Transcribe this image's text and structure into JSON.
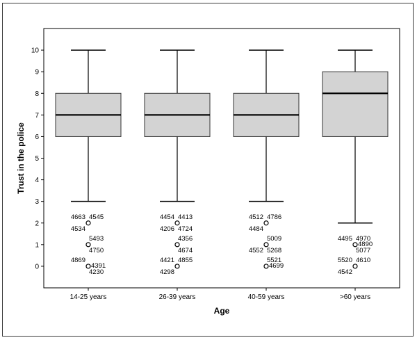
{
  "chart_data": {
    "type": "boxplot",
    "xlabel": "Age",
    "ylabel": "Trust in the police",
    "ylim": [
      -1,
      11
    ],
    "yticks": [
      0,
      1,
      2,
      3,
      4,
      5,
      6,
      7,
      8,
      9,
      10
    ],
    "categories": [
      "14-25 years",
      "26-39 years",
      "40-59 years",
      ">60 years"
    ],
    "box_color": "#d3d3d3",
    "boxes": [
      {
        "category": "14-25 years",
        "whisker_low": 3,
        "q1": 6,
        "median": 7,
        "q3": 8,
        "whisker_high": 10,
        "outliers": [
          {
            "value": 2,
            "labels": [
              {
                "text": "4663",
                "pos": "ul"
              },
              {
                "text": "4545",
                "pos": "ur"
              },
              {
                "text": "4534",
                "pos": "dl"
              }
            ]
          },
          {
            "value": 1,
            "labels": [
              {
                "text": "5493",
                "pos": "ur"
              },
              {
                "text": "4750",
                "pos": "dr"
              }
            ]
          },
          {
            "value": 0,
            "labels": [
              {
                "text": "4869",
                "pos": "ul"
              },
              {
                "text": "4391",
                "pos": "r"
              },
              {
                "text": "4230",
                "pos": "dr"
              }
            ]
          }
        ]
      },
      {
        "category": "26-39 years",
        "whisker_low": 3,
        "q1": 6,
        "median": 7,
        "q3": 8,
        "whisker_high": 10,
        "outliers": [
          {
            "value": 2,
            "labels": [
              {
                "text": "4454",
                "pos": "ul"
              },
              {
                "text": "4413",
                "pos": "ur"
              },
              {
                "text": "4206",
                "pos": "dl"
              },
              {
                "text": "4724",
                "pos": "dr"
              }
            ]
          },
          {
            "value": 1,
            "labels": [
              {
                "text": "4356",
                "pos": "ur"
              },
              {
                "text": "4674",
                "pos": "dr"
              }
            ]
          },
          {
            "value": 0,
            "labels": [
              {
                "text": "4421",
                "pos": "ul"
              },
              {
                "text": "4855",
                "pos": "ur"
              },
              {
                "text": "4298",
                "pos": "dl"
              }
            ]
          }
        ]
      },
      {
        "category": "40-59 years",
        "whisker_low": 3,
        "q1": 6,
        "median": 7,
        "q3": 8,
        "whisker_high": 10,
        "outliers": [
          {
            "value": 2,
            "labels": [
              {
                "text": "4512",
                "pos": "ul"
              },
              {
                "text": "4786",
                "pos": "ur"
              },
              {
                "text": "4484",
                "pos": "dl"
              }
            ]
          },
          {
            "value": 1,
            "labels": [
              {
                "text": "5009",
                "pos": "ur"
              },
              {
                "text": "4552",
                "pos": "dl"
              },
              {
                "text": "5268",
                "pos": "dr"
              }
            ]
          },
          {
            "value": 0,
            "labels": [
              {
                "text": "5521",
                "pos": "ur"
              },
              {
                "text": "4699",
                "pos": "r"
              }
            ]
          }
        ]
      },
      {
        "category": ">60 years",
        "whisker_low": 2,
        "q1": 6,
        "median": 8,
        "q3": 9,
        "whisker_high": 10,
        "outliers": [
          {
            "value": 1,
            "labels": [
              {
                "text": "4970",
                "pos": "ur"
              },
              {
                "text": "4495",
                "pos": "ul"
              },
              {
                "text": "4890",
                "pos": "r"
              },
              {
                "text": "5077",
                "pos": "dr"
              }
            ]
          },
          {
            "value": 0,
            "labels": [
              {
                "text": "5520",
                "pos": "ul"
              },
              {
                "text": "4610",
                "pos": "ur"
              },
              {
                "text": "4542",
                "pos": "dl"
              }
            ]
          }
        ]
      }
    ]
  }
}
